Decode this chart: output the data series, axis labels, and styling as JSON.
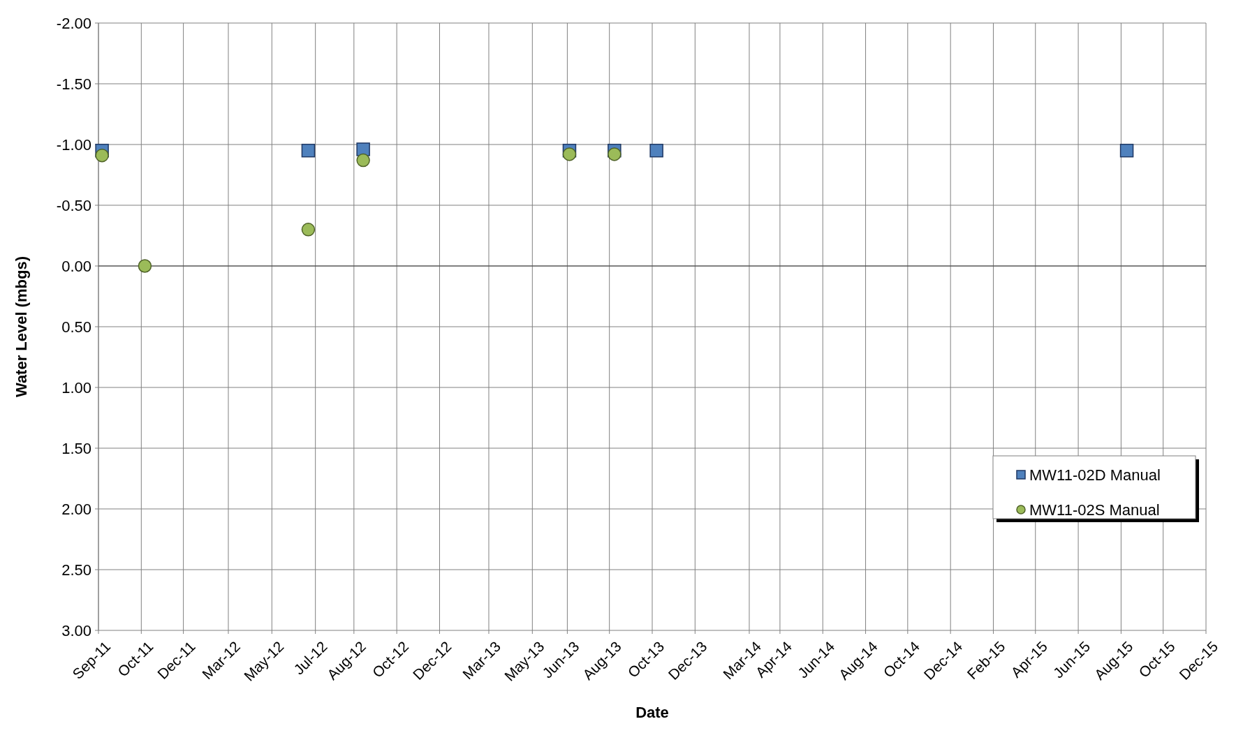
{
  "chart_data": {
    "type": "scatter",
    "xlabel": "Date",
    "ylabel": "Water Level (mbgs)",
    "xlim": [
      "2011-09-01",
      "2015-12-01"
    ],
    "xticks": [
      {
        "value": "2011-09-01",
        "label": "Sep-11"
      },
      {
        "value": "2011-10-31",
        "label": "Oct-11"
      },
      {
        "value": "2011-12-29",
        "label": "Dec-11"
      },
      {
        "value": "2012-03-01",
        "label": "Mar-12"
      },
      {
        "value": "2012-05-01",
        "label": "May-12"
      },
      {
        "value": "2012-07-01",
        "label": "Jul-12"
      },
      {
        "value": "2012-08-24",
        "label": "Aug-12"
      },
      {
        "value": "2012-10-23",
        "label": "Oct-12"
      },
      {
        "value": "2012-12-22",
        "label": "Dec-12"
      },
      {
        "value": "2013-03-01",
        "label": "Mar-13"
      },
      {
        "value": "2013-05-01",
        "label": "May-13"
      },
      {
        "value": "2013-06-19",
        "label": "Jun-13"
      },
      {
        "value": "2013-08-17",
        "label": "Aug-13"
      },
      {
        "value": "2013-10-16",
        "label": "Oct-13"
      },
      {
        "value": "2013-12-15",
        "label": "Dec-13"
      },
      {
        "value": "2014-03-01",
        "label": "Mar-14"
      },
      {
        "value": "2014-04-13",
        "label": "Apr-14"
      },
      {
        "value": "2014-06-12",
        "label": "Jun-14"
      },
      {
        "value": "2014-08-11",
        "label": "Aug-14"
      },
      {
        "value": "2014-10-09",
        "label": "Oct-14"
      },
      {
        "value": "2014-12-08",
        "label": "Dec-14"
      },
      {
        "value": "2015-02-06",
        "label": "Feb-15"
      },
      {
        "value": "2015-04-06",
        "label": "Apr-15"
      },
      {
        "value": "2015-06-05",
        "label": "Jun-15"
      },
      {
        "value": "2015-08-04",
        "label": "Aug-15"
      },
      {
        "value": "2015-10-02",
        "label": "Oct-15"
      },
      {
        "value": "2015-12-01",
        "label": "Dec-15"
      }
    ],
    "ylim": [
      3,
      -2
    ],
    "yticks": [
      {
        "value": -2,
        "label": "-2.00"
      },
      {
        "value": -1.5,
        "label": "-1.50"
      },
      {
        "value": -1,
        "label": "-1.00"
      },
      {
        "value": -0.5,
        "label": "-0.50"
      },
      {
        "value": 0,
        "label": "0.00"
      },
      {
        "value": 0.5,
        "label": "0.50"
      },
      {
        "value": 1,
        "label": "1.00"
      },
      {
        "value": 1.5,
        "label": "1.50"
      },
      {
        "value": 2,
        "label": "2.00"
      },
      {
        "value": 2.5,
        "label": "2.50"
      },
      {
        "value": 3,
        "label": "3.00"
      }
    ],
    "grid": true,
    "legend": "bottom right",
    "series": [
      {
        "name": "MW11-02D Manual",
        "color": "#4f81bd",
        "marker": "square",
        "x": [
          "2011-09-06",
          "2012-06-21",
          "2012-09-06",
          "2013-06-22",
          "2013-08-24",
          "2013-10-22",
          "2015-08-12"
        ],
        "values": [
          -0.95,
          -0.95,
          -0.96,
          -0.95,
          -0.95,
          -0.95,
          -0.95
        ]
      },
      {
        "name": "MW11-02S Manual",
        "color": "#9bbb59",
        "marker": "circle",
        "x": [
          "2011-09-06",
          "2011-11-05",
          "2012-06-21",
          "2012-09-06",
          "2013-06-22",
          "2013-08-24"
        ],
        "values": [
          -0.91,
          0,
          -0.3,
          -0.87,
          -0.92,
          -0.92
        ]
      }
    ]
  }
}
